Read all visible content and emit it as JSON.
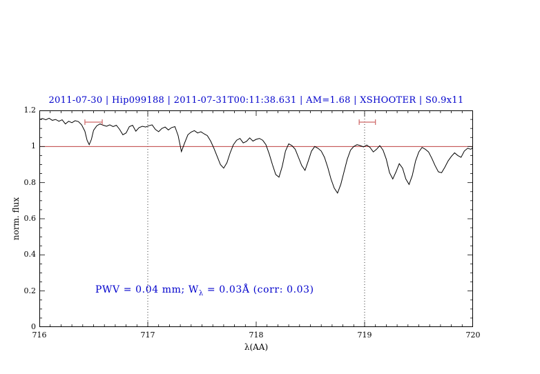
{
  "chart_data": {
    "type": "line",
    "title": "2011-07-30 | Hip099188 | 2011-07-31T00:11:38.631 | AM=1.68 | XSHOOTER | S0.9x11",
    "xlabel": "λ(AA)",
    "ylabel": "norm. flux",
    "xlim": [
      716,
      720
    ],
    "ylim": [
      0,
      1.2
    ],
    "xticks": [
      716,
      717,
      718,
      719,
      720
    ],
    "xticklabels": [
      "716",
      "717",
      "718",
      "719",
      "720"
    ],
    "yticks": [
      0,
      0.2,
      0.4,
      0.6,
      0.8,
      1,
      1.2
    ],
    "yticklabels": [
      "0",
      "0.2",
      "0.4",
      "0.6",
      "0.8",
      "1",
      "1.2"
    ],
    "grid": "off",
    "reference_line_y": 1.0,
    "dotted_vlines": [
      717,
      719
    ],
    "error_markers": [
      {
        "x1": 716.42,
        "x2": 716.58,
        "y": 1.135
      },
      {
        "x1": 718.95,
        "x2": 719.1,
        "y": 1.135
      }
    ],
    "annotation": {
      "part1": "PWV = 0.04 mm; W",
      "sub": "λ",
      "part2": " = 0.03Å (corr: 0.03)"
    },
    "colors": {
      "spectrum": "#000000",
      "reference": "#b22222",
      "marker": "#cd6666",
      "title": "#0000cc",
      "annotation": "#0000cc"
    },
    "points": [
      [
        716.0,
        1.15
      ],
      [
        716.03,
        1.155
      ],
      [
        716.06,
        1.148
      ],
      [
        716.09,
        1.157
      ],
      [
        716.12,
        1.145
      ],
      [
        716.15,
        1.15
      ],
      [
        716.18,
        1.14
      ],
      [
        716.21,
        1.148
      ],
      [
        716.24,
        1.125
      ],
      [
        716.27,
        1.14
      ],
      [
        716.3,
        1.132
      ],
      [
        716.33,
        1.143
      ],
      [
        716.36,
        1.138
      ],
      [
        716.39,
        1.12
      ],
      [
        716.42,
        1.085
      ],
      [
        716.44,
        1.035
      ],
      [
        716.46,
        1.01
      ],
      [
        716.48,
        1.04
      ],
      [
        716.5,
        1.09
      ],
      [
        716.53,
        1.115
      ],
      [
        716.56,
        1.125
      ],
      [
        716.59,
        1.118
      ],
      [
        716.62,
        1.112
      ],
      [
        716.65,
        1.12
      ],
      [
        716.68,
        1.11
      ],
      [
        716.71,
        1.118
      ],
      [
        716.74,
        1.095
      ],
      [
        716.77,
        1.065
      ],
      [
        716.8,
        1.075
      ],
      [
        716.83,
        1.11
      ],
      [
        716.86,
        1.118
      ],
      [
        716.89,
        1.085
      ],
      [
        716.92,
        1.105
      ],
      [
        716.95,
        1.112
      ],
      [
        716.98,
        1.108
      ],
      [
        717.01,
        1.115
      ],
      [
        717.04,
        1.12
      ],
      [
        717.07,
        1.095
      ],
      [
        717.1,
        1.082
      ],
      [
        717.13,
        1.1
      ],
      [
        717.16,
        1.108
      ],
      [
        717.19,
        1.092
      ],
      [
        717.22,
        1.105
      ],
      [
        717.25,
        1.11
      ],
      [
        717.28,
        1.06
      ],
      [
        717.31,
        0.972
      ],
      [
        717.34,
        1.02
      ],
      [
        717.37,
        1.065
      ],
      [
        717.4,
        1.08
      ],
      [
        717.43,
        1.088
      ],
      [
        717.46,
        1.075
      ],
      [
        717.49,
        1.082
      ],
      [
        717.52,
        1.07
      ],
      [
        717.55,
        1.06
      ],
      [
        717.58,
        1.03
      ],
      [
        717.61,
        0.99
      ],
      [
        717.64,
        0.945
      ],
      [
        717.67,
        0.9
      ],
      [
        717.7,
        0.88
      ],
      [
        717.73,
        0.91
      ],
      [
        717.76,
        0.965
      ],
      [
        717.79,
        1.01
      ],
      [
        717.82,
        1.035
      ],
      [
        717.85,
        1.045
      ],
      [
        717.88,
        1.02
      ],
      [
        717.91,
        1.028
      ],
      [
        717.94,
        1.048
      ],
      [
        717.97,
        1.03
      ],
      [
        718.0,
        1.04
      ],
      [
        718.03,
        1.045
      ],
      [
        718.06,
        1.035
      ],
      [
        718.09,
        1.01
      ],
      [
        718.12,
        0.96
      ],
      [
        718.15,
        0.9
      ],
      [
        718.18,
        0.845
      ],
      [
        718.21,
        0.83
      ],
      [
        718.24,
        0.89
      ],
      [
        718.27,
        0.975
      ],
      [
        718.3,
        1.015
      ],
      [
        718.33,
        1.005
      ],
      [
        718.36,
        0.985
      ],
      [
        718.39,
        0.94
      ],
      [
        718.42,
        0.895
      ],
      [
        718.45,
        0.868
      ],
      [
        718.48,
        0.92
      ],
      [
        718.51,
        0.975
      ],
      [
        718.54,
        1.0
      ],
      [
        718.57,
        0.99
      ],
      [
        718.6,
        0.975
      ],
      [
        718.63,
        0.94
      ],
      [
        718.66,
        0.885
      ],
      [
        718.69,
        0.82
      ],
      [
        718.72,
        0.77
      ],
      [
        718.75,
        0.742
      ],
      [
        718.78,
        0.79
      ],
      [
        718.81,
        0.86
      ],
      [
        718.84,
        0.93
      ],
      [
        718.87,
        0.98
      ],
      [
        718.9,
        1.0
      ],
      [
        718.93,
        1.01
      ],
      [
        718.96,
        1.005
      ],
      [
        718.99,
        0.998
      ],
      [
        719.02,
        1.008
      ],
      [
        719.05,
        0.995
      ],
      [
        719.08,
        0.97
      ],
      [
        719.11,
        0.985
      ],
      [
        719.14,
        1.005
      ],
      [
        719.17,
        0.98
      ],
      [
        719.2,
        0.93
      ],
      [
        719.23,
        0.855
      ],
      [
        719.26,
        0.82
      ],
      [
        719.29,
        0.86
      ],
      [
        719.32,
        0.905
      ],
      [
        719.35,
        0.88
      ],
      [
        719.38,
        0.82
      ],
      [
        719.41,
        0.79
      ],
      [
        719.44,
        0.84
      ],
      [
        719.47,
        0.92
      ],
      [
        719.5,
        0.97
      ],
      [
        719.53,
        0.995
      ],
      [
        719.56,
        0.985
      ],
      [
        719.59,
        0.97
      ],
      [
        719.62,
        0.935
      ],
      [
        719.65,
        0.895
      ],
      [
        719.68,
        0.86
      ],
      [
        719.71,
        0.855
      ],
      [
        719.74,
        0.885
      ],
      [
        719.77,
        0.92
      ],
      [
        719.8,
        0.945
      ],
      [
        719.83,
        0.965
      ],
      [
        719.86,
        0.95
      ],
      [
        719.89,
        0.94
      ],
      [
        719.92,
        0.975
      ],
      [
        719.95,
        0.99
      ],
      [
        719.98,
        0.985
      ],
      [
        720.0,
        0.995
      ]
    ]
  }
}
